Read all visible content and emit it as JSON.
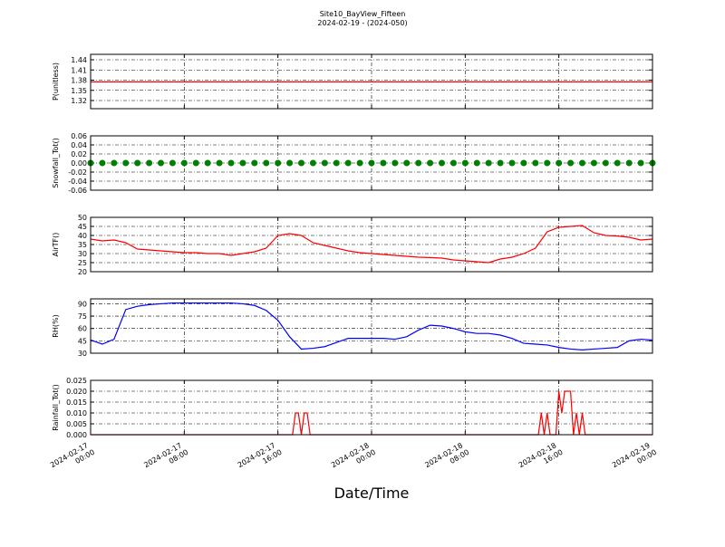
{
  "chart_data": {
    "type": "multi",
    "title": "Site10_BayView_Fifteen",
    "subtitle": "2024-02-19 - (2024-050)",
    "xlabel": "Date/Time",
    "xlim": [
      "2024-02-17 00:00",
      "2024-02-19 00:00"
    ],
    "xticks": [
      "2024-02-17 00:00",
      "2024-02-17 08:00",
      "2024-02-17 16:00",
      "2024-02-18 00:00",
      "2024-02-18 08:00",
      "2024-02-18 16:00",
      "2024-02-19 00:00"
    ],
    "x": [
      "2024-02-17 00:00",
      "2024-02-17 01:00",
      "2024-02-17 02:00",
      "2024-02-17 03:00",
      "2024-02-17 04:00",
      "2024-02-17 05:00",
      "2024-02-17 06:00",
      "2024-02-17 07:00",
      "2024-02-17 08:00",
      "2024-02-17 09:00",
      "2024-02-17 10:00",
      "2024-02-17 11:00",
      "2024-02-17 12:00",
      "2024-02-17 13:00",
      "2024-02-17 14:00",
      "2024-02-17 15:00",
      "2024-02-17 16:00",
      "2024-02-17 17:00",
      "2024-02-17 18:00",
      "2024-02-17 19:00",
      "2024-02-17 20:00",
      "2024-02-17 21:00",
      "2024-02-17 22:00",
      "2024-02-17 23:00",
      "2024-02-18 00:00",
      "2024-02-18 01:00",
      "2024-02-18 02:00",
      "2024-02-18 03:00",
      "2024-02-18 04:00",
      "2024-02-18 05:00",
      "2024-02-18 06:00",
      "2024-02-18 07:00",
      "2024-02-18 08:00",
      "2024-02-18 09:00",
      "2024-02-18 10:00",
      "2024-02-18 11:00",
      "2024-02-18 12:00",
      "2024-02-18 13:00",
      "2024-02-18 14:00",
      "2024-02-18 15:00",
      "2024-02-18 16:00",
      "2024-02-18 17:00",
      "2024-02-18 18:00",
      "2024-02-18 19:00",
      "2024-02-18 20:00",
      "2024-02-18 21:00",
      "2024-02-18 22:00",
      "2024-02-18 23:00",
      "2024-02-19 00:00"
    ],
    "panels": [
      {
        "type": "line",
        "ylabel": "P(unitless)",
        "grid": true,
        "ylim": [
          1.296,
          1.456
        ],
        "yticks": [
          1.32,
          1.35,
          1.38,
          1.41,
          1.44
        ],
        "x": [
          "2024-02-17 00:00",
          "2024-02-19 00:00"
        ],
        "series": [
          {
            "color": "#ff0000",
            "values": [
              1.375,
              1.375
            ]
          }
        ]
      },
      {
        "type": "scatter",
        "ylabel": "Snowfall_Tot()",
        "grid": true,
        "ylim": [
          -0.06,
          0.06
        ],
        "yticks": [
          -0.06,
          -0.04,
          -0.02,
          {
            "value": 0,
            "label": "0.00"
          },
          0.02,
          0.04,
          0.06
        ],
        "series": [
          {
            "color": "#008000",
            "values": [
              0,
              0,
              0,
              0,
              0,
              0,
              0,
              0,
              0,
              0,
              0,
              0,
              0,
              0,
              0,
              0,
              0,
              0,
              0,
              0,
              0,
              0,
              0,
              0,
              0,
              0,
              0,
              0,
              0,
              0,
              0,
              0,
              0,
              0,
              0,
              0,
              0,
              0,
              0,
              0,
              0,
              0,
              0,
              0,
              0,
              0,
              0,
              0,
              0
            ]
          }
        ]
      },
      {
        "type": "line",
        "ylabel": "AirTF()",
        "grid": true,
        "ylim": [
          20,
          50
        ],
        "yticks": [
          20,
          25,
          30,
          35,
          40,
          45,
          50
        ],
        "series": [
          {
            "color": "#ff0000",
            "values": [
              38,
              37,
              37.5,
              36,
              32.5,
              32,
              31.5,
              31,
              30.5,
              30.5,
              30,
              30,
              29,
              30,
              31,
              33,
              40,
              41,
              40,
              36,
              34.5,
              33,
              31.5,
              30.5,
              30,
              29.5,
              29,
              28.5,
              28,
              27.8,
              27.5,
              26.5,
              26,
              25.5,
              25,
              27,
              28,
              30,
              33,
              42,
              44.5,
              45,
              45.5,
              41.5,
              40,
              39.7,
              39,
              37.5,
              38
            ]
          }
        ]
      },
      {
        "type": "line",
        "ylabel": "RH(%)",
        "grid": true,
        "ylim": [
          30,
          96
        ],
        "yticks": [
          30,
          45,
          60,
          75,
          90
        ],
        "series": [
          {
            "color": "#0000ff",
            "values": [
              46,
              41,
              47,
              83,
              87,
              89,
              90,
              91,
              91,
              91,
              91,
              91,
              91,
              90,
              88,
              82,
              70,
              50,
              35,
              36,
              38,
              43,
              48,
              48,
              48,
              48,
              47,
              50,
              58,
              64,
              63,
              60,
              56,
              54,
              54,
              52,
              48,
              42,
              41,
              40,
              37,
              35,
              34,
              35,
              36,
              37,
              45,
              47,
              46
            ]
          }
        ]
      },
      {
        "type": "line",
        "ylabel": "Rainfall_Tot()",
        "grid": true,
        "ylim": [
          0,
          0.025
        ],
        "yticks": [
          {
            "value": 0,
            "label": "0.000"
          },
          {
            "value": 0.005,
            "label": "0.005"
          },
          {
            "value": 0.01,
            "label": "0.010"
          },
          {
            "value": 0.015,
            "label": "0.015"
          },
          {
            "value": 0.02,
            "label": "0.020"
          },
          0.025
        ],
        "x": [
          "2024-02-17 00:00",
          "2024-02-17 17:15",
          "2024-02-17 17:30",
          "2024-02-17 17:45",
          "2024-02-17 18:00",
          "2024-02-17 18:15",
          "2024-02-17 18:30",
          "2024-02-17 18:45",
          "2024-02-18 14:15",
          "2024-02-18 14:30",
          "2024-02-18 14:45",
          "2024-02-18 15:00",
          "2024-02-18 15:15",
          "2024-02-18 15:45",
          "2024-02-18 16:00",
          "2024-02-18 16:15",
          "2024-02-18 16:30",
          "2024-02-18 16:45",
          "2024-02-18 17:00",
          "2024-02-18 17:15",
          "2024-02-18 17:30",
          "2024-02-18 17:45",
          "2024-02-18 18:00",
          "2024-02-18 18:15",
          "2024-02-19 00:00"
        ],
        "series": [
          {
            "color": "#ff0000",
            "values": [
              0,
              0,
              0.01,
              0.01,
              0,
              0.01,
              0.01,
              0,
              0,
              0.01,
              0,
              0.01,
              0,
              0,
              0.02,
              0.01,
              0.02,
              0.02,
              0.02,
              0,
              0.01,
              0,
              0.01,
              0,
              0
            ]
          }
        ]
      }
    ]
  }
}
